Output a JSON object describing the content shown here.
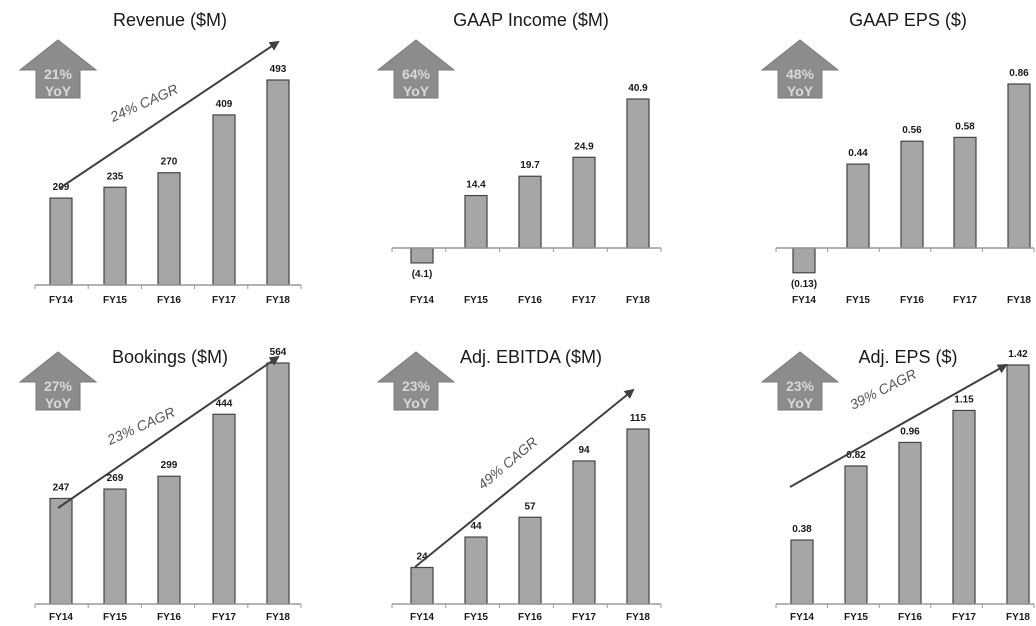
{
  "chart_data": [
    {
      "type": "bar",
      "title": "Revenue ($M)",
      "categories": [
        "FY14",
        "FY15",
        "FY16",
        "FY17",
        "FY18"
      ],
      "values": [
        209,
        235,
        270,
        409,
        493
      ],
      "value_labels": [
        "209",
        "235",
        "270",
        "409",
        "493"
      ],
      "ylim": [
        0,
        493
      ],
      "badge": {
        "line1": "21%",
        "line2": "YoY"
      },
      "cagr_label": "24% CAGR"
    },
    {
      "type": "bar",
      "title": "GAAP Income ($M)",
      "categories": [
        "FY14",
        "FY15",
        "FY16",
        "FY17",
        "FY18"
      ],
      "values": [
        -4.1,
        14.4,
        19.7,
        24.9,
        40.9
      ],
      "value_labels": [
        "(4.1)",
        "14.4",
        "19.7",
        "24.9",
        "40.9"
      ],
      "ylim": [
        -4.1,
        40.9
      ],
      "badge": {
        "line1": "64%",
        "line2": "YoY"
      },
      "cagr_label": ""
    },
    {
      "type": "bar",
      "title": "GAAP EPS ($)",
      "categories": [
        "FY14",
        "FY15",
        "FY16",
        "FY17",
        "FY18"
      ],
      "values": [
        -0.13,
        0.44,
        0.56,
        0.58,
        0.86
      ],
      "value_labels": [
        "(0.13)",
        "0.44",
        "0.56",
        "0.58",
        "0.86"
      ],
      "ylim": [
        -0.13,
        0.86
      ],
      "badge": {
        "line1": "48%",
        "line2": "YoY"
      },
      "cagr_label": ""
    },
    {
      "type": "bar",
      "title": "Bookings ($M)",
      "categories": [
        "FY14",
        "FY15",
        "FY16",
        "FY17",
        "FY18"
      ],
      "values": [
        247,
        269,
        299,
        444,
        564
      ],
      "value_labels": [
        "247",
        "269",
        "299",
        "444",
        "564"
      ],
      "ylim": [
        0,
        564
      ],
      "badge": {
        "line1": "27%",
        "line2": "YoY"
      },
      "cagr_label": "23% CAGR"
    },
    {
      "type": "bar",
      "title": "Adj. EBITDA ($M)",
      "categories": [
        "FY14",
        "FY15",
        "FY16",
        "FY17",
        "FY18"
      ],
      "values": [
        24,
        44,
        57,
        94,
        115
      ],
      "value_labels": [
        "24",
        "44",
        "57",
        "94",
        "115"
      ],
      "ylim": [
        0,
        115
      ],
      "badge": {
        "line1": "23%",
        "line2": "YoY"
      },
      "cagr_label": "49% CAGR"
    },
    {
      "type": "bar",
      "title": "Adj. EPS ($)",
      "categories": [
        "FY14",
        "FY15",
        "FY16",
        "FY17",
        "FY18"
      ],
      "values": [
        0.38,
        0.82,
        0.96,
        1.15,
        1.42
      ],
      "value_labels": [
        "0.38",
        "0.82",
        "0.96",
        "1.15",
        "1.42"
      ],
      "ylim": [
        0,
        1.42
      ],
      "badge": {
        "line1": "23%",
        "line2": "YoY"
      },
      "cagr_label": "39% CAGR"
    }
  ],
  "colors": {
    "bar": "#a6a6a6",
    "badge": "#8c8c8c",
    "badge_text": "#d9d9d9",
    "arrow": "#404040"
  }
}
